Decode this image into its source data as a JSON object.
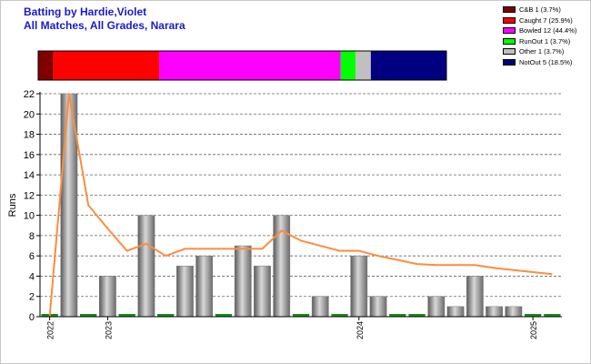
{
  "title_line1": "Batting by Hardie,Violet",
  "title_line2": "All Matches, All Grades, Narara",
  "legend": [
    {
      "label": "C&B 1 (3.7%)",
      "color": "#800000"
    },
    {
      "label": "Caught 7 (25.9%)",
      "color": "#ff0000"
    },
    {
      "label": "Bowled 12 (44.4%)",
      "color": "#ff00ff"
    },
    {
      "label": "RunOut 1 (3.7%)",
      "color": "#00ff00"
    },
    {
      "label": "Other 1 (3.7%)",
      "color": "#c0c0c0"
    },
    {
      "label": "NotOut 5 (18.5%)",
      "color": "#000080"
    }
  ],
  "chart_data": {
    "type": "bar",
    "ylabel": "Runs",
    "ylim": [
      0,
      22
    ],
    "yticks": [
      0,
      2,
      4,
      6,
      8,
      10,
      12,
      14,
      16,
      18,
      20,
      22
    ],
    "grid": true,
    "dismissals": [
      {
        "name": "C&B",
        "count": 1,
        "color": "#800000"
      },
      {
        "name": "Caught",
        "count": 7,
        "color": "#ff0000"
      },
      {
        "name": "Bowled",
        "count": 12,
        "color": "#ff00ff"
      },
      {
        "name": "RunOut",
        "count": 1,
        "color": "#00ff00"
      },
      {
        "name": "Other",
        "count": 1,
        "color": "#c0c0c0"
      },
      {
        "name": "NotOut",
        "count": 5,
        "color": "#000080"
      }
    ],
    "innings_runs": [
      0,
      22,
      0,
      4,
      0,
      10,
      0,
      5,
      6,
      0,
      7,
      5,
      10,
      0,
      2,
      0,
      6,
      2,
      0,
      0,
      2,
      1,
      4,
      1,
      1,
      0,
      0
    ],
    "average_line": [
      0,
      22,
      11,
      8.7,
      6.5,
      7.2,
      6,
      6.7,
      6.7,
      6.7,
      6.7,
      6.7,
      8.5,
      7.5,
      7,
      6.5,
      6.5,
      6,
      5.6,
      5.2,
      5.1,
      5.1,
      5.1,
      4.8,
      4.6,
      4.4,
      4.2
    ],
    "x_tick_labels": [
      {
        "label": "2022",
        "index": 0
      },
      {
        "label": "2023",
        "index": 3
      },
      {
        "label": "2024",
        "index": 16
      },
      {
        "label": "2025",
        "index": 25
      }
    ],
    "colors": {
      "bar": "#a0a0a0",
      "zero_bar": "#1a8a1a",
      "average": "#ff8c3a"
    }
  }
}
